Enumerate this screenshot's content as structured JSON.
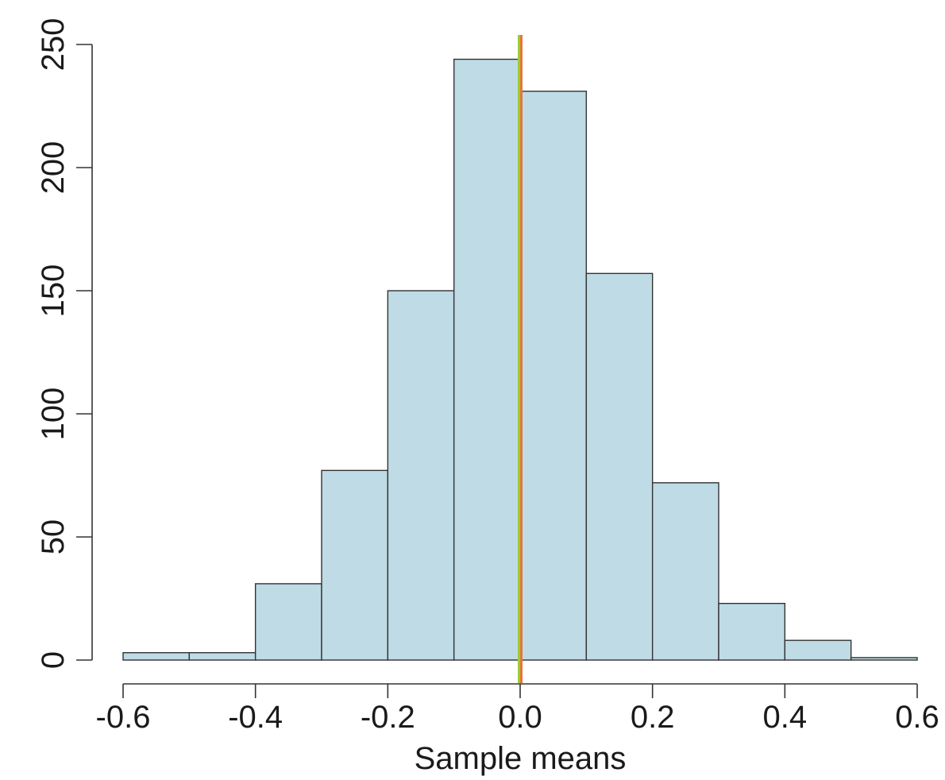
{
  "chart_data": {
    "type": "bar",
    "subtype": "histogram",
    "title": "",
    "xlabel": "Sample means",
    "ylabel": "",
    "bin_edges": [
      -0.6,
      -0.5,
      -0.4,
      -0.3,
      -0.2,
      -0.1,
      0.0,
      0.1,
      0.2,
      0.3,
      0.4,
      0.5,
      0.6
    ],
    "counts": [
      3,
      3,
      31,
      77,
      150,
      244,
      231,
      157,
      72,
      23,
      8,
      1
    ],
    "xlim": [
      -0.6,
      0.6
    ],
    "ylim": [
      0,
      250
    ],
    "x_ticks": [
      -0.6,
      -0.4,
      -0.2,
      0.0,
      0.2,
      0.4,
      0.6
    ],
    "x_tick_labels": [
      "-0.6",
      "-0.4",
      "-0.2",
      "0.0",
      "0.2",
      "0.4",
      "0.6"
    ],
    "y_ticks": [
      0,
      50,
      100,
      150,
      200,
      250
    ],
    "y_tick_labels": [
      "0",
      "50",
      "100",
      "150",
      "200",
      "250"
    ],
    "reference_lines": [
      {
        "x": 0.0,
        "color": "#e8743b"
      },
      {
        "x": 0.0,
        "color": "#9acd32"
      }
    ],
    "bar_fill": "#bfdbe5",
    "bar_stroke": "#333333",
    "grid": false,
    "legend": "none"
  }
}
